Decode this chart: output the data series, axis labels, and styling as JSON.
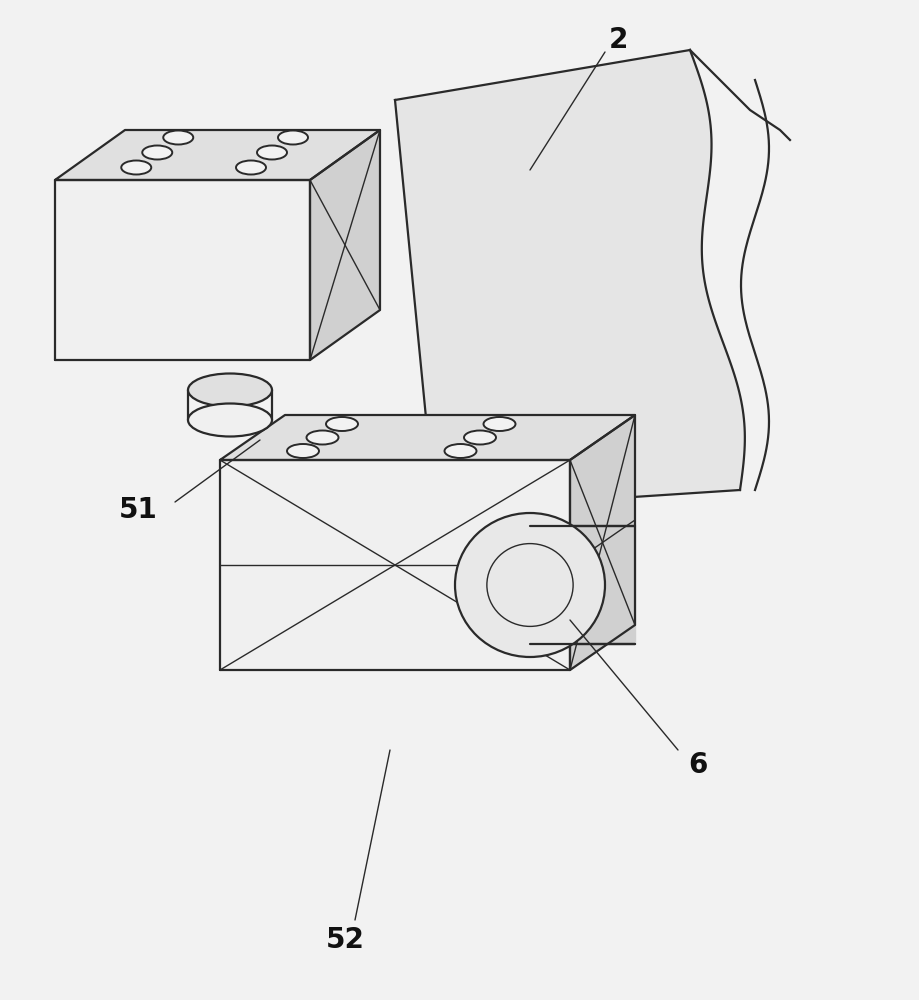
{
  "bg_color": "#f2f2f2",
  "line_color": "#2a2a2a",
  "face_top": "#e0e0e0",
  "face_front": "#f0f0f0",
  "face_right": "#d0d0d0",
  "face_light": "#e8e8e8",
  "bracket_color": "#e5e5e5",
  "lw_main": 1.6,
  "lw_thin": 1.0,
  "label_fontsize": 20,
  "label_2": "2",
  "label_51": "51",
  "label_52": "52",
  "label_6": "6"
}
